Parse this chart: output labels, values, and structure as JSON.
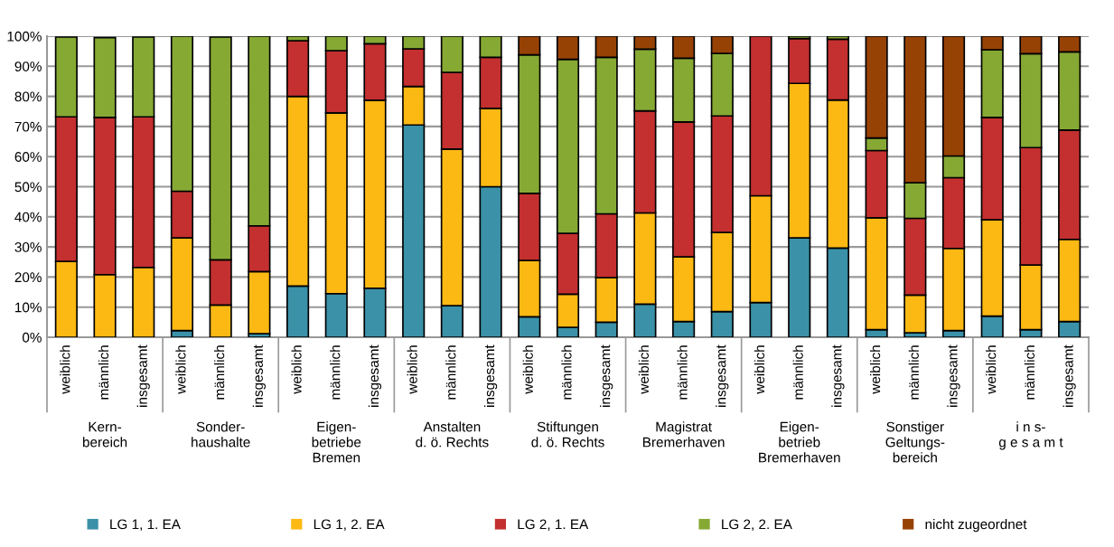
{
  "chart_data": {
    "type": "bar",
    "stacked": true,
    "categories": [
      "weiblich",
      "männlich",
      "insgesamt",
      "weiblich",
      "männlich",
      "insgesamt",
      "weiblich",
      "männlich",
      "insgesamt",
      "weiblich",
      "männlich",
      "insgesamt",
      "weiblich",
      "männlich",
      "insgesamt",
      "weiblich",
      "männlich",
      "insgesamt",
      "weiblich",
      "männlich",
      "insgesamt",
      "weiblich",
      "männlich",
      "insgesamt",
      "weiblich",
      "männlich",
      "insgesamt"
    ],
    "annotations": [
      "Kern-\nbereich",
      "Sonder-\nhaushalte",
      "Eigen-\nbetriebe\nBremen",
      "Anstalten\nd. ö. Rechts",
      "Stiftungen\nd. ö. Rechts",
      "Magistrat\nBremerhaven",
      "Eigen-\nbetrieb\nBremerhaven",
      "Sonstiger\nGeltungs-\nbereich",
      "i n s-\ng e s a m t"
    ],
    "series": [
      {
        "name": "LG 1, 1. EA",
        "color": "#3a91a8",
        "values": [
          null,
          null,
          null,
          2.2,
          null,
          1.2,
          17,
          14.5,
          16.3,
          70.5,
          10.5,
          50,
          6.8,
          3.3,
          5,
          11,
          5.2,
          8.5,
          11.5,
          33,
          29.6,
          2.5,
          1.5,
          2.2,
          7,
          2.5,
          5.2
        ]
      },
      {
        "name": "LG 1, 2. EA",
        "color": "#fdb913",
        "values": [
          25.2,
          20.8,
          23.2,
          30.8,
          10.7,
          20.6,
          63,
          60,
          62.4,
          12.8,
          52,
          26,
          18.7,
          11,
          14.8,
          30.3,
          21.5,
          26.3,
          35.5,
          51.3,
          49.2,
          37.2,
          12.5,
          27.3,
          32,
          21.5,
          27.3
        ]
      },
      {
        "name": "LG 2, 1. EA",
        "color": "#c3302f",
        "values": [
          48,
          52.2,
          50,
          15.5,
          15,
          15.2,
          18.5,
          20.7,
          18.8,
          12.5,
          25.5,
          17,
          22.3,
          20.2,
          21.2,
          33.9,
          44.8,
          38.7,
          53,
          14.9,
          20.2,
          22.3,
          25.5,
          23.5,
          34,
          39,
          36.3
        ]
      },
      {
        "name": "LG 2, 2. EA",
        "color": "#86a934",
        "values": [
          26.5,
          26.5,
          26.5,
          51.5,
          74,
          63,
          1.5,
          4.8,
          2.5,
          4.2,
          12,
          7,
          46,
          57.8,
          52,
          20.5,
          21.2,
          20.8,
          0,
          0.8,
          1,
          4.2,
          11.8,
          7.2,
          22.5,
          31.2,
          26
        ]
      },
      {
        "name": "nicht zugeordnet",
        "color": "#974205",
        "values": [
          0,
          0,
          0,
          0,
          0,
          0,
          0,
          0,
          0,
          0,
          0,
          0,
          6.2,
          7.7,
          7,
          4.3,
          7.3,
          5.7,
          0,
          0,
          0,
          33.8,
          48.7,
          39.8,
          4.5,
          5.8,
          5.2
        ]
      }
    ],
    "ylim": [
      0,
      100
    ],
    "yticks": [
      {
        "value": 0,
        "label": "0%"
      },
      {
        "value": 10,
        "label": "10%"
      },
      {
        "value": 20,
        "label": "20%"
      },
      {
        "value": 30,
        "label": "30%"
      },
      {
        "value": 40,
        "label": "40%"
      },
      {
        "value": 50,
        "label": "50%"
      },
      {
        "value": 60,
        "label": "60%"
      },
      {
        "value": 70,
        "label": "70%"
      },
      {
        "value": 80,
        "label": "80%"
      },
      {
        "value": 90,
        "label": "90%"
      },
      {
        "value": 100,
        "label": "100%"
      }
    ],
    "grid": "y",
    "legend": "bottom"
  }
}
